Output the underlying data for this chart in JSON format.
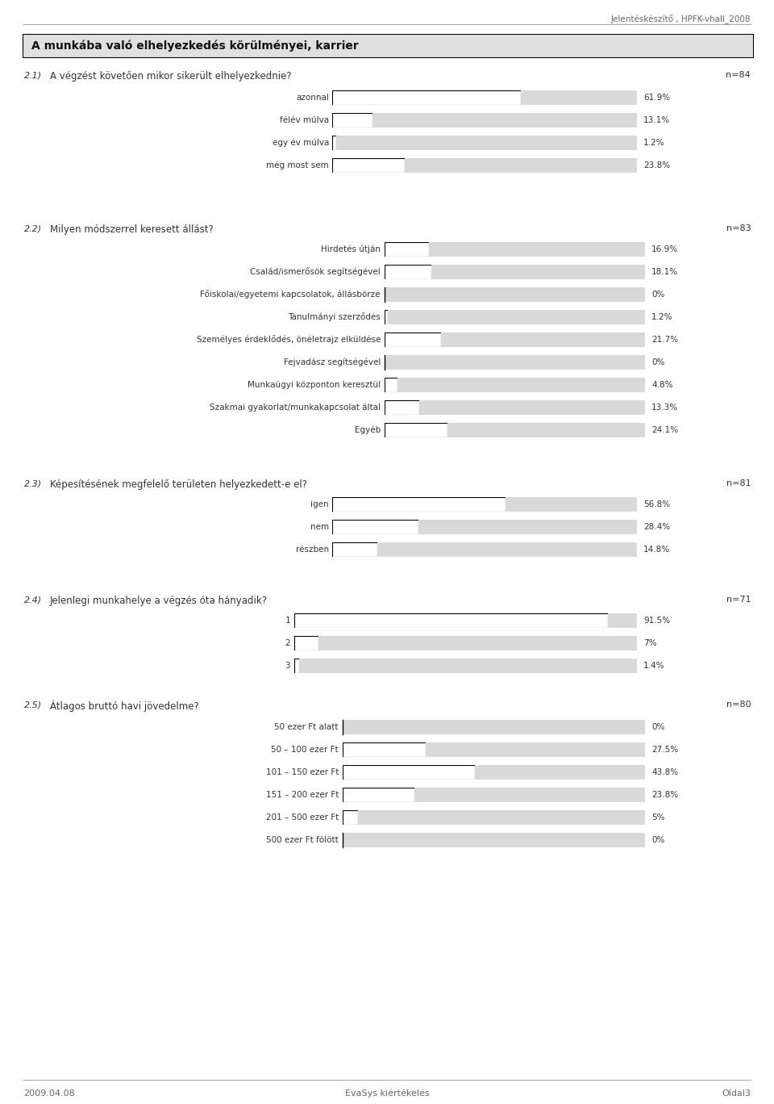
{
  "header_text": "Jelentéskészítő , HPFK-vhall_2008",
  "section_title": "A munkába való elhelyezkedés körülményei, karrier",
  "footer_left": "2009.04.08",
  "footer_center": "EvaSys kiértékelés",
  "footer_right": "Oldal3",
  "questions": [
    {
      "number": "2.1)",
      "text": "A végzést követően mikor sikerült elhelyezkednie?",
      "n": "n=84",
      "categories": [
        "azonnal",
        "félév múlva",
        "egy év múlva",
        "még most sem"
      ],
      "values": [
        61.9,
        13.1,
        1.2,
        23.8
      ],
      "value_labels": [
        "61.9%",
        "13.1%",
        "1.2%",
        "23.8%"
      ]
    },
    {
      "number": "2.2)",
      "text": "Milyen módszerrel keresett állást?",
      "n": "n=83",
      "categories": [
        "Hirdetés útján",
        "Család/ismerősök segítségével",
        "Főiskolai/egyetemi kapcsolatok, állásbörze",
        "Tanulmányi szerződés",
        "Személyes érdeklődés, önéletrajz elküldése",
        "Fejvadász segítségével",
        "Munkaügyi központon keresztül",
        "Szakmai gyakorlat/munkakapcsolat által",
        "Egyéb"
      ],
      "values": [
        16.9,
        18.1,
        0.0,
        1.2,
        21.7,
        0.0,
        4.8,
        13.3,
        24.1
      ],
      "value_labels": [
        "16.9%",
        "18.1%",
        "0%",
        "1.2%",
        "21.7%",
        "0%",
        "4.8%",
        "13.3%",
        "24.1%"
      ]
    },
    {
      "number": "2.3)",
      "text": "Képesítésének megfelelő területen helyezkedett-e el?",
      "n": "n=81",
      "categories": [
        "igen",
        "nem",
        "részben"
      ],
      "values": [
        56.8,
        28.4,
        14.8
      ],
      "value_labels": [
        "56.8%",
        "28.4%",
        "14.8%"
      ]
    },
    {
      "number": "2.4)",
      "text": "Jelenlegi munkahelye a végzés óta hányadik?",
      "n": "n=71",
      "categories": [
        "1",
        "2",
        "3"
      ],
      "values": [
        91.5,
        7.0,
        1.4
      ],
      "value_labels": [
        "91.5%",
        "7%",
        "1.4%"
      ]
    },
    {
      "number": "2.5)",
      "text": "Átlagos bruttó havi jövedelme?",
      "n": "n=80",
      "categories": [
        "50 ezer Ft alatt",
        "50 – 100 ezer Ft",
        "101 – 150 ezer Ft",
        "151 – 200 ezer Ft",
        "201 – 500 ezer Ft",
        "500 ezer Ft fölött"
      ],
      "values": [
        0.0,
        27.5,
        43.8,
        23.8,
        5.0,
        0.0
      ],
      "value_labels": [
        "0%",
        "27.5%",
        "43.8%",
        "23.8%",
        "5%",
        "0%"
      ]
    }
  ],
  "bar_bg_color": "#d9d9d9",
  "bar_fg_color": "#ffffff",
  "bar_border_color": "#000000",
  "section_title_bg": "#e0e0e0",
  "section_title_border": "#000000",
  "text_color": "#333333",
  "header_color": "#666666",
  "max_val": 100
}
